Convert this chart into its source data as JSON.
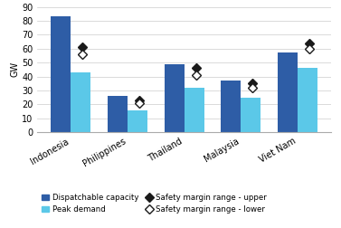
{
  "categories": [
    "Indonesia",
    "Philippines",
    "Thailand",
    "Malaysia",
    "Viet Nam"
  ],
  "dispatchable_capacity": [
    83,
    26,
    49,
    37,
    57
  ],
  "peak_demand": [
    43,
    16,
    32,
    25,
    46
  ],
  "safety_margin_upper": [
    61,
    23,
    46,
    35,
    64
  ],
  "safety_margin_lower": [
    56,
    21,
    41,
    32,
    60
  ],
  "bar_color_dispatch": "#2E5DA6",
  "bar_color_peak": "#5BC8E8",
  "marker_upper_color": "#1a1a1a",
  "marker_lower_color": "#ffffff",
  "ylim": [
    0,
    90
  ],
  "yticks": [
    0,
    10,
    20,
    30,
    40,
    50,
    60,
    70,
    80,
    90
  ],
  "ylabel": "GW",
  "legend_dispatch": "Dispatchable capacity",
  "legend_peak": "Peak demand",
  "legend_upper": "Safety margin range - upper",
  "legend_lower": "Safety margin range - lower",
  "bar_width": 0.35,
  "figsize": [
    3.77,
    2.52
  ],
  "dpi": 100
}
